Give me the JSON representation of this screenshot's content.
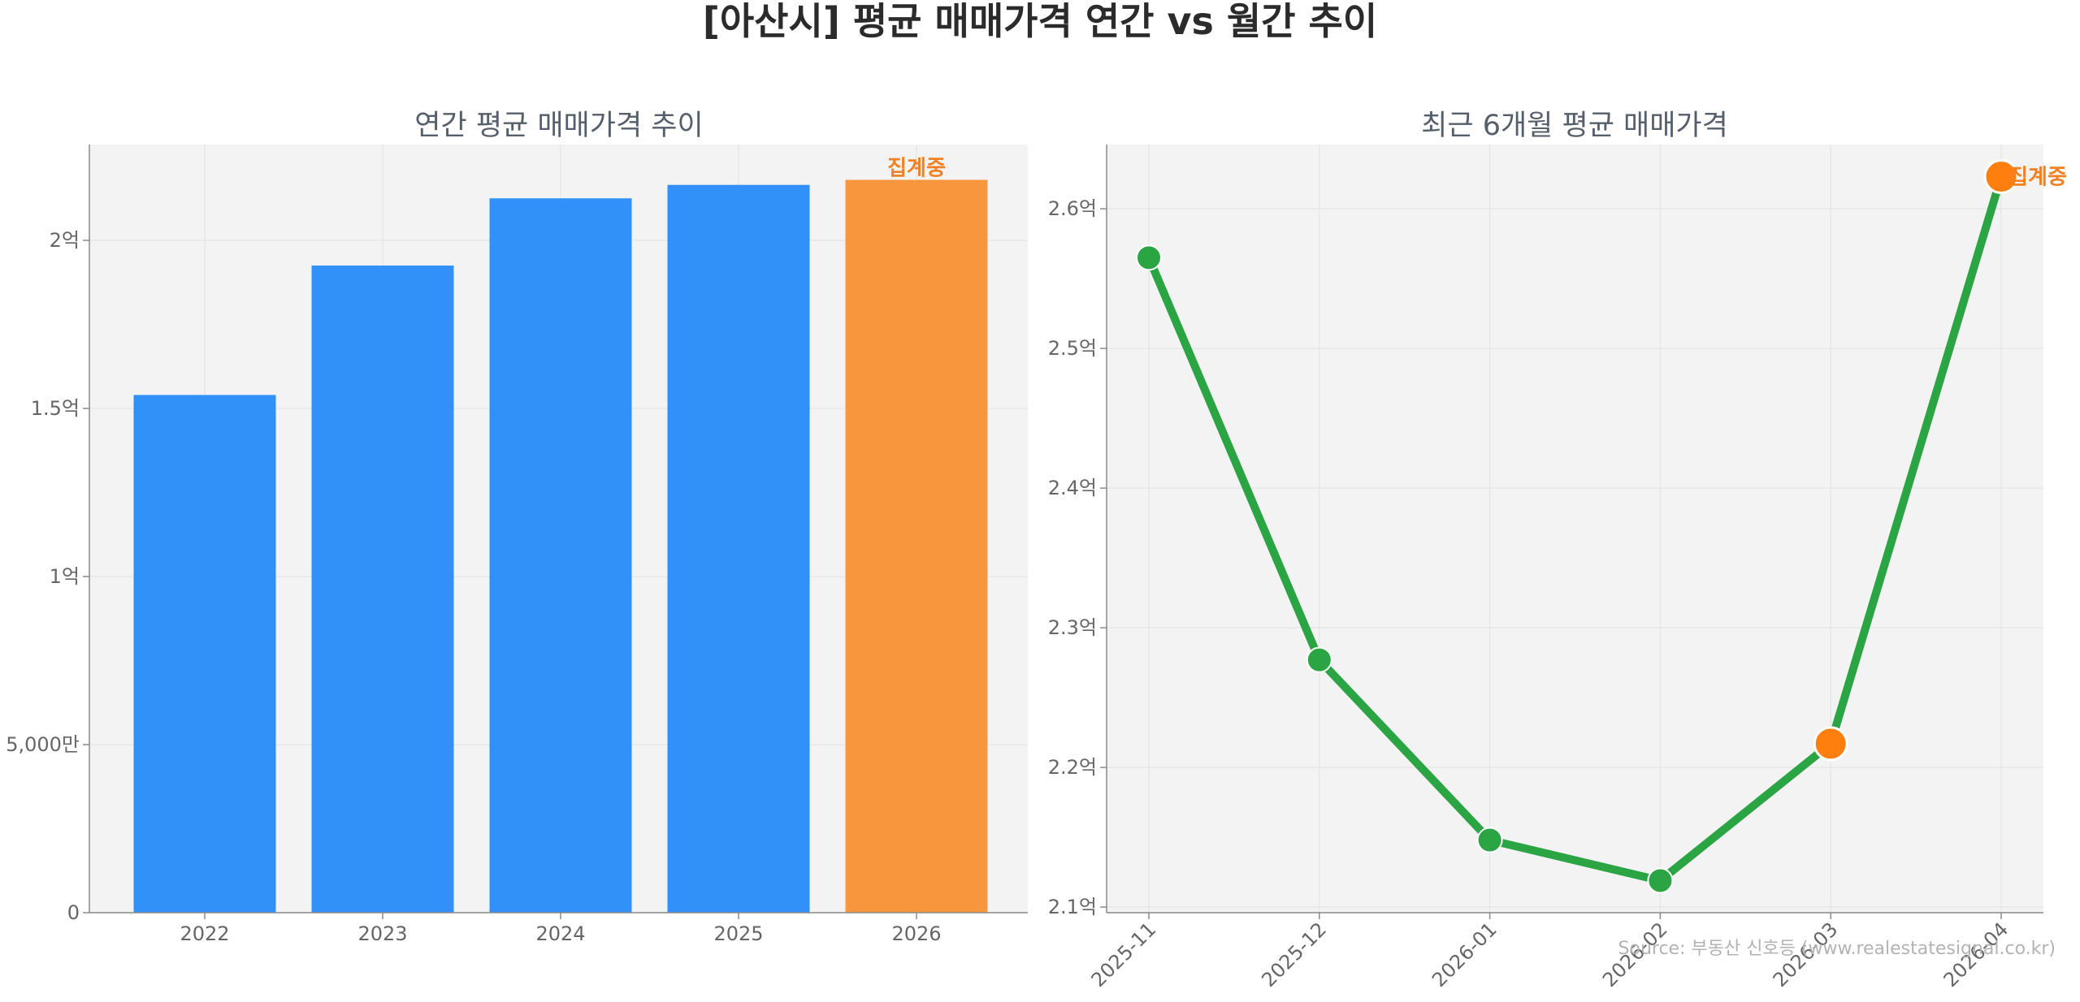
{
  "suptitle": "[아산시] 평균 매매가격 연간 vs 월간 추이",
  "source": "Source: 부동산 신호등 (www.realestatesignal.co.kr)",
  "colors": {
    "bar_complete": "#3191f8",
    "bar_partial": "#f8963e",
    "line": "#2ba444",
    "point_partial": "#ff7f0e",
    "annotation": "#f28124",
    "axes_bg": "#f3f3f3",
    "grid": "#e4e4e4"
  },
  "chart_data": [
    {
      "type": "bar",
      "title": "연간 평균 매매가격 추이",
      "categories": [
        "2022",
        "2023",
        "2024",
        "2025",
        "2026"
      ],
      "values": [
        15400,
        19250,
        21250,
        21650,
        21800
      ],
      "value_unit": "만원",
      "partial": [
        false,
        false,
        false,
        false,
        true
      ],
      "annotation": {
        "category": "2026",
        "text": "집계중"
      },
      "ylim": [
        0,
        22850
      ],
      "yticks": [
        {
          "value": 0,
          "label": "0"
        },
        {
          "value": 5000,
          "label": "5,000만"
        },
        {
          "value": 10000,
          "label": "1억"
        },
        {
          "value": 15000,
          "label": "1.5억"
        },
        {
          "value": 20000,
          "label": "2억"
        }
      ],
      "grid": true
    },
    {
      "type": "line",
      "title": "최근 6개월 평균 매매가격",
      "x": [
        "2025-11",
        "2025-12",
        "2026-01",
        "2026-02",
        "2026-03",
        "2026-04"
      ],
      "values": [
        25650,
        22770,
        21480,
        21190,
        22170,
        26230
      ],
      "value_unit": "만원",
      "partial": [
        false,
        false,
        false,
        false,
        true,
        true
      ],
      "annotation": {
        "x": "2026-04",
        "text": "집계중"
      },
      "ylim": [
        20960,
        26460
      ],
      "yticks": [
        {
          "value": 21000,
          "label": "2.1억"
        },
        {
          "value": 22000,
          "label": "2.2억"
        },
        {
          "value": 23000,
          "label": "2.3억"
        },
        {
          "value": 24000,
          "label": "2.4억"
        },
        {
          "value": 25000,
          "label": "2.5억"
        },
        {
          "value": 26000,
          "label": "2.6억"
        }
      ],
      "grid": true
    }
  ]
}
